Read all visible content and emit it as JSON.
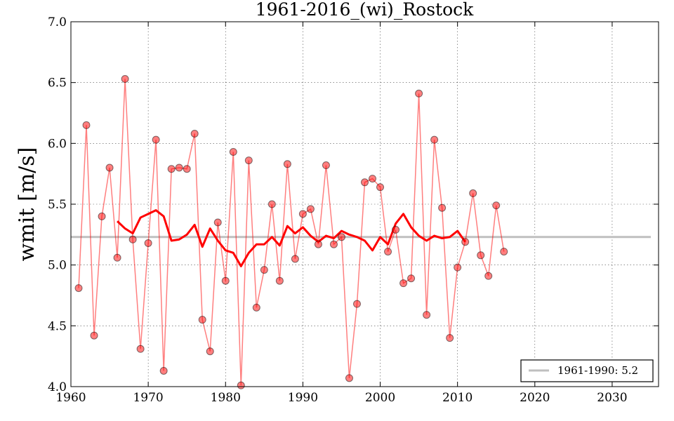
{
  "chart_data": {
    "type": "line",
    "title": "1961-2016_(wi)_Rostock",
    "xlabel": "",
    "ylabel": "wmit [m/s]",
    "xlim": [
      1960,
      2036
    ],
    "ylim": [
      4.0,
      7.0
    ],
    "x_ticks": [
      1960,
      1970,
      1980,
      1990,
      2000,
      2010,
      2020,
      2030
    ],
    "y_ticks": [
      "4.0",
      "4.5",
      "5.0",
      "5.5",
      "6.0",
      "6.5",
      "7.0"
    ],
    "grid": true,
    "legend_position": "lower-right",
    "series": [
      {
        "kind": "annual-values",
        "color": "#ff0000",
        "x": [
          1961,
          1962,
          1963,
          1964,
          1965,
          1966,
          1967,
          1968,
          1969,
          1970,
          1971,
          1972,
          1973,
          1974,
          1975,
          1976,
          1977,
          1978,
          1979,
          1980,
          1981,
          1982,
          1983,
          1984,
          1985,
          1986,
          1987,
          1988,
          1989,
          1990,
          1991,
          1992,
          1993,
          1994,
          1995,
          1996,
          1997,
          1998,
          1999,
          2000,
          2001,
          2002,
          2003,
          2004,
          2005,
          2006,
          2007,
          2008,
          2009,
          2010,
          2011,
          2012,
          2013,
          2014,
          2015,
          2016
        ],
        "values": [
          4.81,
          6.15,
          4.42,
          5.4,
          5.8,
          5.06,
          6.53,
          5.21,
          4.31,
          5.18,
          6.03,
          4.13,
          5.79,
          5.8,
          5.79,
          6.08,
          4.55,
          4.29,
          5.35,
          4.87,
          5.93,
          4.01,
          5.86,
          4.65,
          4.96,
          5.5,
          4.87,
          5.83,
          5.05,
          5.42,
          5.46,
          5.17,
          5.82,
          5.17,
          5.23,
          4.07,
          4.68,
          5.68,
          5.71,
          5.64,
          5.11,
          5.29,
          4.85,
          4.89,
          6.41,
          4.59,
          6.03,
          5.47,
          4.4,
          4.98,
          5.19,
          5.59,
          5.08,
          4.91,
          5.49,
          5.11
        ]
      },
      {
        "kind": "running-mean",
        "color": "#ff0000",
        "x": [
          1966,
          1967,
          1968,
          1969,
          1970,
          1971,
          1972,
          1973,
          1974,
          1975,
          1976,
          1977,
          1978,
          1979,
          1980,
          1981,
          1982,
          1983,
          1984,
          1985,
          1986,
          1987,
          1988,
          1989,
          1990,
          1991,
          1992,
          1993,
          1994,
          1995,
          1996,
          1997,
          1998,
          1999,
          2000,
          2001,
          2002,
          2003,
          2004,
          2005,
          2006,
          2007,
          2008,
          2009,
          2010,
          2011
        ],
        "values": [
          5.36,
          5.3,
          5.26,
          5.39,
          5.42,
          5.45,
          5.4,
          5.2,
          5.21,
          5.25,
          5.33,
          5.15,
          5.3,
          5.2,
          5.12,
          5.1,
          4.99,
          5.1,
          5.17,
          5.17,
          5.23,
          5.16,
          5.32,
          5.26,
          5.31,
          5.24,
          5.19,
          5.24,
          5.22,
          5.28,
          5.25,
          5.23,
          5.2,
          5.12,
          5.23,
          5.17,
          5.34,
          5.42,
          5.31,
          5.24,
          5.2,
          5.24,
          5.22,
          5.23,
          5.28,
          5.19
        ]
      },
      {
        "name": "1961-1990: 5.2",
        "kind": "reference-mean",
        "color": "#bfbfbf",
        "x": [
          1960,
          2035
        ],
        "values": [
          5.23,
          5.23
        ]
      }
    ]
  }
}
